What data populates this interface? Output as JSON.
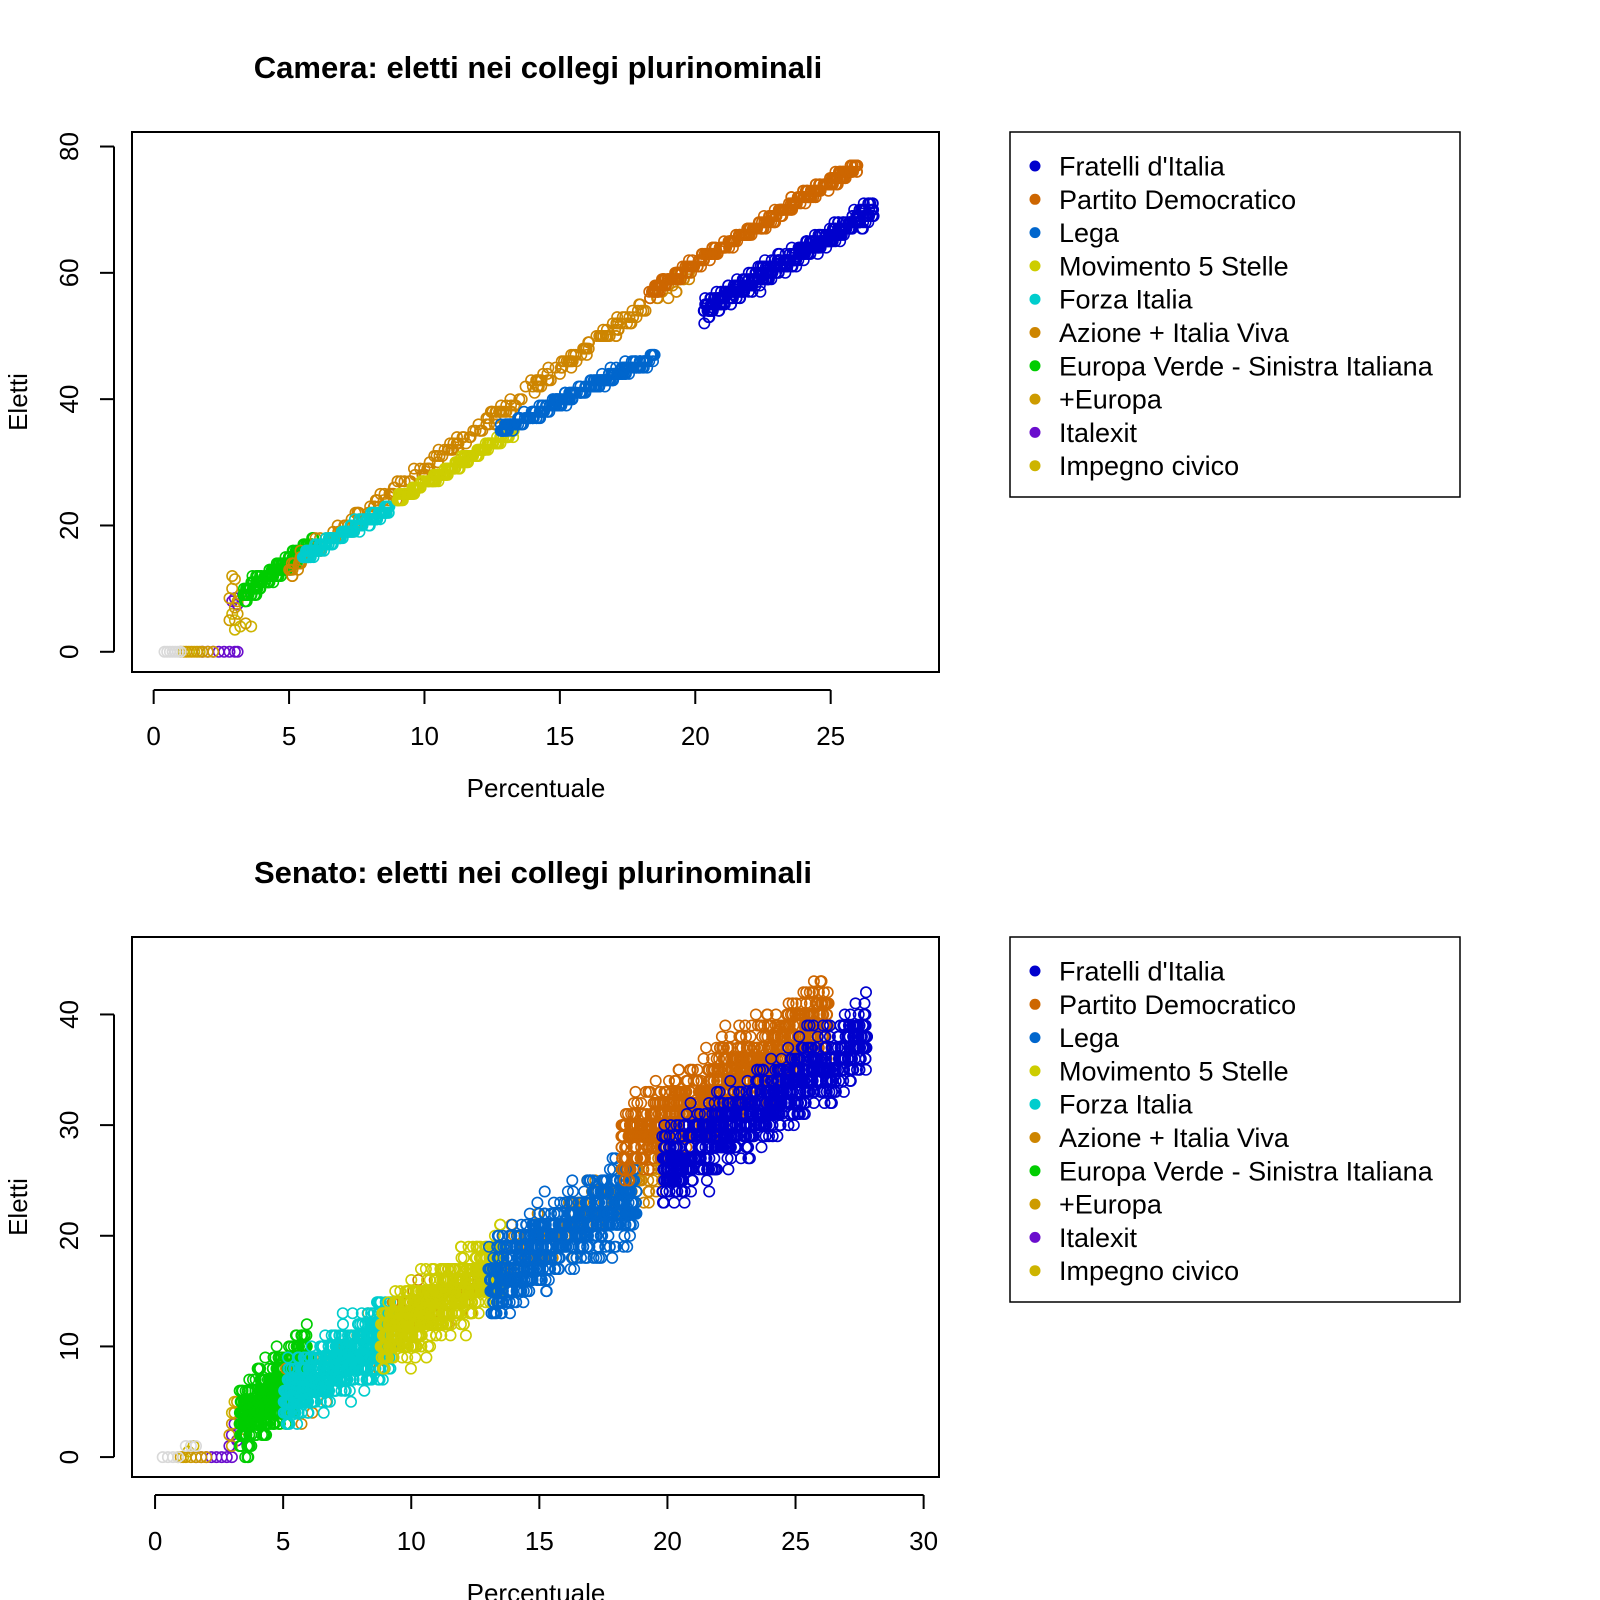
{
  "chart_data": [
    {
      "type": "scatter",
      "title": "Camera: eletti nei collegi plurinominali",
      "xlabel": "Percentuale",
      "ylabel": "Eletti",
      "xlim": [
        -0.8,
        29.0
      ],
      "ylim": [
        -3.2,
        82.3
      ],
      "xticks": [
        0,
        5,
        10,
        15,
        20,
        25
      ],
      "yticks": [
        0,
        20,
        40,
        60,
        80
      ],
      "legend_position": "right",
      "marker": "open-circle",
      "series": [
        {
          "name": "Fratelli d'Italia",
          "color": "#0000cd",
          "kind": "band",
          "x_range": [
            20.3,
            26.6
          ],
          "y_at_start": 54,
          "y_at_end": 70,
          "spread": 2.2,
          "n": 500
        },
        {
          "name": "Partito Democratico",
          "color": "#cd6600",
          "kind": "band",
          "x_range": [
            18.3,
            26.0
          ],
          "y_at_start": 57,
          "y_at_end": 77,
          "spread": 1.2,
          "n": 380
        },
        {
          "name": "Lega",
          "color": "#0066cd",
          "kind": "band",
          "x_range": [
            12.8,
            18.5
          ],
          "y_at_start": 35,
          "y_at_end": 47,
          "spread": 1.2,
          "n": 300
        },
        {
          "name": "Movimento 5 Stelle",
          "color": "#cdcd00",
          "kind": "band",
          "x_range": [
            9.0,
            13.3
          ],
          "y_at_start": 24,
          "y_at_end": 35,
          "spread": 0.8,
          "n": 220
        },
        {
          "name": "Forza Italia",
          "color": "#00cdcd",
          "kind": "band",
          "x_range": [
            5.5,
            8.8
          ],
          "y_at_start": 15,
          "y_at_end": 23,
          "spread": 1.0,
          "n": 200
        },
        {
          "name": "Azione + Italia Viva",
          "color": "#cd8500",
          "kind": "band",
          "x_range": [
            5.0,
            19.8
          ],
          "y_at_start": 13,
          "y_at_end": 60,
          "spread": 2.0,
          "n": 280
        },
        {
          "name": "Europa Verde - Sinistra Italiana",
          "color": "#00cd00",
          "kind": "band",
          "x_range": [
            3.3,
            5.9
          ],
          "y_at_start": 9,
          "y_at_end": 17,
          "spread": 2.0,
          "n": 220
        },
        {
          "name": "+Europa",
          "color": "#cd9b00",
          "kind": "cluster",
          "points": [
            [
              2.8,
              8.5
            ],
            [
              3.0,
              7.0
            ],
            [
              2.9,
              10.0
            ],
            [
              3.1,
              6.0
            ],
            [
              2.8,
              5.0
            ],
            [
              3.0,
              11.5
            ],
            [
              3.2,
              9.0
            ],
            [
              3.4,
              4.5
            ],
            [
              2.9,
              12.0
            ],
            [
              3.1,
              8.0
            ],
            [
              1.0,
              0
            ],
            [
              1.2,
              0
            ],
            [
              1.4,
              0
            ],
            [
              1.6,
              0
            ],
            [
              1.8,
              0
            ],
            [
              2.0,
              0
            ],
            [
              2.2,
              0
            ]
          ]
        },
        {
          "name": "Italexit",
          "color": "#6a0dcd",
          "kind": "cluster",
          "points": [
            [
              1.8,
              0
            ],
            [
              2.0,
              0
            ],
            [
              2.2,
              0
            ],
            [
              2.4,
              0
            ],
            [
              2.6,
              0
            ],
            [
              2.8,
              0
            ],
            [
              3.0,
              0
            ],
            [
              3.1,
              0
            ],
            [
              2.9,
              8.0
            ],
            [
              3.0,
              8.5
            ],
            [
              3.1,
              7.5
            ],
            [
              3.3,
              9.0
            ]
          ]
        },
        {
          "name": "Impegno civico",
          "color": "#cdb400",
          "kind": "cluster",
          "points": [
            [
              2.9,
              6.0
            ],
            [
              3.0,
              5.0
            ],
            [
              3.2,
              4.0
            ],
            [
              3.0,
              3.5
            ],
            [
              3.6,
              4.0
            ],
            [
              1.1,
              0
            ],
            [
              1.3,
              0
            ],
            [
              1.5,
              0
            ],
            [
              1.7,
              0
            ]
          ]
        }
      ],
      "other_points": {
        "name": "",
        "color": "#d9d9d9",
        "points": [
          [
            0.4,
            0
          ],
          [
            0.5,
            0
          ],
          [
            0.6,
            0
          ],
          [
            0.7,
            0
          ],
          [
            0.8,
            0
          ],
          [
            0.9,
            0
          ],
          [
            1.0,
            0
          ]
        ]
      }
    },
    {
      "type": "scatter",
      "title": "Senato: eletti nei collegi plurinominali",
      "xlabel": "Percentuale",
      "ylabel": "Eletti",
      "xlim": [
        -0.9,
        30.6
      ],
      "ylim": [
        -1.8,
        47.0
      ],
      "xticks": [
        0,
        5,
        10,
        15,
        20,
        25,
        30
      ],
      "yticks": [
        0,
        10,
        20,
        30,
        40
      ],
      "legend_position": "right",
      "marker": "open-circle",
      "series": [
        {
          "name": "Fratelli d'Italia",
          "color": "#0000cd",
          "kind": "band",
          "x_range": [
            19.8,
            27.8
          ],
          "y_at_start": 26,
          "y_at_end": 38,
          "spread": 5.0,
          "n": 900
        },
        {
          "name": "Partito Democratico",
          "color": "#cd6600",
          "kind": "band",
          "x_range": [
            18.2,
            26.3
          ],
          "y_at_start": 28,
          "y_at_end": 40,
          "spread": 5.0,
          "n": 900
        },
        {
          "name": "Lega",
          "color": "#0066cd",
          "kind": "band",
          "x_range": [
            13.0,
            18.8
          ],
          "y_at_start": 16,
          "y_at_end": 24,
          "spread": 5.0,
          "n": 700
        },
        {
          "name": "Movimento 5 Stelle",
          "color": "#cdcd00",
          "kind": "band",
          "x_range": [
            8.8,
            13.5
          ],
          "y_at_start": 10.5,
          "y_at_end": 17.5,
          "spread": 4.5,
          "n": 700
        },
        {
          "name": "Forza Italia",
          "color": "#00cdcd",
          "kind": "band",
          "x_range": [
            5.0,
            9.2
          ],
          "y_at_start": 5.5,
          "y_at_end": 11,
          "spread": 4.5,
          "n": 650
        },
        {
          "name": "Azione + Italia Viva",
          "color": "#cd8500",
          "kind": "band",
          "x_range": [
            5.0,
            20.0
          ],
          "y_at_start": 5,
          "y_at_end": 27,
          "spread": 4.0,
          "n": 280
        },
        {
          "name": "Europa Verde - Sinistra Italiana",
          "color": "#00cd00",
          "kind": "band",
          "x_range": [
            3.3,
            6.0
          ],
          "y_at_start": 3,
          "y_at_end": 9,
          "spread": 4.5,
          "n": 550
        },
        {
          "name": "+Europa",
          "color": "#cd9b00",
          "kind": "cluster",
          "points": [
            [
              2.9,
              2
            ],
            [
              3.0,
              3
            ],
            [
              3.1,
              4
            ],
            [
              3.2,
              5
            ],
            [
              3.5,
              2.5
            ],
            [
              3.8,
              3.5
            ],
            [
              3.0,
              1
            ],
            [
              1.0,
              0
            ],
            [
              1.2,
              0
            ],
            [
              1.4,
              0
            ],
            [
              1.6,
              0
            ],
            [
              1.8,
              0
            ],
            [
              2.0,
              0
            ]
          ]
        },
        {
          "name": "Italexit",
          "color": "#6a0dcd",
          "kind": "cluster",
          "points": [
            [
              1.6,
              0
            ],
            [
              1.8,
              0
            ],
            [
              2.0,
              0
            ],
            [
              2.2,
              0
            ],
            [
              2.4,
              0
            ],
            [
              2.6,
              0
            ],
            [
              2.8,
              0
            ],
            [
              3.0,
              0
            ],
            [
              2.9,
              1
            ],
            [
              3.0,
              2
            ],
            [
              3.1,
              3
            ],
            [
              3.2,
              1.5
            ],
            [
              3.4,
              2.0
            ]
          ]
        },
        {
          "name": "Impegno civico",
          "color": "#cdb400",
          "kind": "cluster",
          "points": [
            [
              1.3,
              0.5
            ],
            [
              1.5,
              1
            ],
            [
              3.0,
              4
            ],
            [
              3.1,
              5
            ],
            [
              3.3,
              3
            ],
            [
              0.9,
              0
            ],
            [
              1.1,
              0
            ]
          ]
        }
      ],
      "other_points": {
        "name": "",
        "color": "#d9d9d9",
        "points": [
          [
            0.3,
            0
          ],
          [
            0.5,
            0
          ],
          [
            0.7,
            0
          ],
          [
            0.9,
            0
          ],
          [
            1.2,
            1
          ],
          [
            1.4,
            1
          ],
          [
            1.6,
            1
          ]
        ]
      }
    }
  ]
}
